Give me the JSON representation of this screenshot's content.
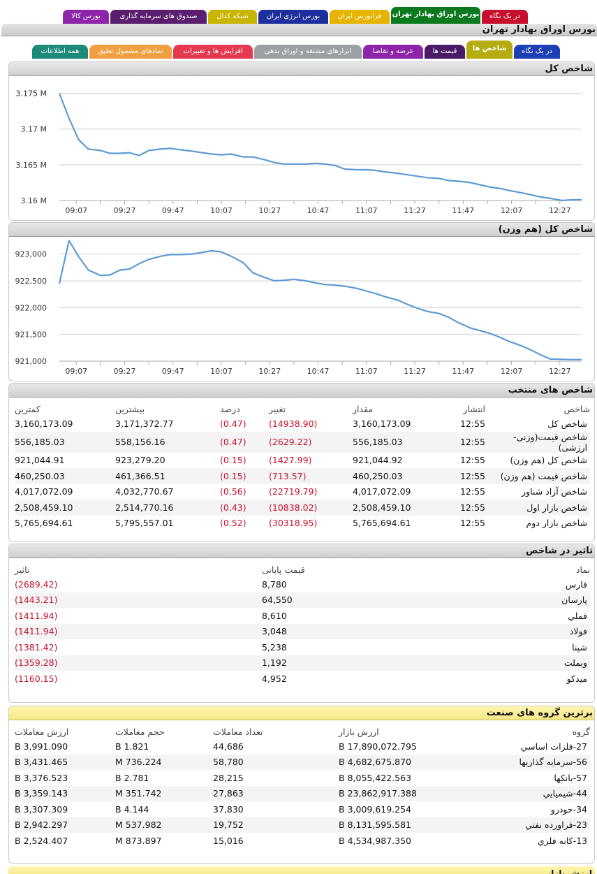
{
  "top_tabs": [
    {
      "label": "در یک نگاه",
      "color": "#c8102e"
    },
    {
      "label": "بورس اوراق بهادار تهران",
      "color": "#0b7a1f",
      "active": true
    },
    {
      "label": "فرابورس ایران",
      "color": "#e6b300"
    },
    {
      "label": "بورس انرژی ایران",
      "color": "#1c2f9c"
    },
    {
      "label": "شبکه کدال",
      "color": "#c9b400"
    },
    {
      "label": "صندوق های سرمایه گذاری",
      "color": "#5a1e6e"
    },
    {
      "label": "بورس کالا",
      "color": "#8e24aa"
    }
  ],
  "main_header": "بورس اوراق بهادار تهران",
  "sub_tabs": [
    {
      "label": "در یک نگاه",
      "color": "#1c3fb3"
    },
    {
      "label": "شاخص ها",
      "color": "#b5ad10",
      "active": true
    },
    {
      "label": "قیمت ها",
      "color": "#4b1a66"
    },
    {
      "label": "عرضه و تقاضا",
      "color": "#8e24aa"
    },
    {
      "label": "ابزارهای مشتقه و اوراق بدهی",
      "color": "#9aa0a6"
    },
    {
      "label": "افزایش ها و تغییرات",
      "color": "#e53950"
    },
    {
      "label": "نمادهای مشمول تعلیق",
      "color": "#f0a040"
    },
    {
      "label": "همه اطلاعات",
      "color": "#1e8a7a"
    }
  ],
  "chart1": {
    "title": "شاخص کل",
    "chart_data": {
      "type": "line",
      "x": [
        "09:00",
        "09:04",
        "09:08",
        "09:12",
        "09:17",
        "09:21",
        "09:25",
        "09:29",
        "09:33",
        "09:37",
        "09:42",
        "09:46",
        "09:50",
        "09:55",
        "09:59",
        "10:03",
        "10:07",
        "10:11",
        "10:16",
        "10:20",
        "10:25",
        "10:29",
        "10:33",
        "10:37",
        "10:42",
        "10:46",
        "10:50",
        "10:54",
        "10:58",
        "11:03",
        "11:07",
        "11:11",
        "11:15",
        "11:20",
        "11:24",
        "11:28",
        "11:32",
        "11:37",
        "11:41",
        "11:45",
        "11:50",
        "11:54",
        "11:58",
        "12:02",
        "12:06",
        "12:11",
        "12:15",
        "12:19",
        "12:23",
        "12:28",
        "12:32",
        "12:36"
      ],
      "series": [
        {
          "values": [
            3.175,
            3.1715,
            3.1685,
            3.1672,
            3.167,
            3.1666,
            3.1666,
            3.1667,
            3.1663,
            3.167,
            3.1672,
            3.1673,
            3.1671,
            3.1669,
            3.1667,
            3.1665,
            3.1664,
            3.1665,
            3.1661,
            3.1661,
            3.1657,
            3.1653,
            3.1651,
            3.1651,
            3.1651,
            3.1652,
            3.1651,
            3.1649,
            3.1644,
            3.1643,
            3.1643,
            3.1642,
            3.164,
            3.1638,
            3.1636,
            3.1634,
            3.1632,
            3.1631,
            3.1628,
            3.1627,
            3.1625,
            3.1622,
            3.1619,
            3.1617,
            3.1614,
            3.1611,
            3.1608,
            3.1605,
            3.1603,
            3.16,
            3.1601,
            3.1601
          ]
        }
      ],
      "xticks": [
        "09:07",
        "09:27",
        "09:47",
        "10:07",
        "10:27",
        "10:47",
        "11:07",
        "11:27",
        "11:47",
        "12:07",
        "12:27"
      ],
      "yticks": [
        "3.16 M",
        "3.165 M",
        "3.17 M",
        "3.175 M"
      ],
      "ylim": [
        3.16,
        3.175
      ],
      "color": "#5b9bd5",
      "grid": true
    }
  },
  "chart2": {
    "title": "شاخص کل (هم وزن)",
    "chart_data": {
      "type": "line",
      "x": [
        "09:00",
        "09:04",
        "09:08",
        "09:12",
        "09:17",
        "09:21",
        "09:25",
        "09:29",
        "09:33",
        "09:37",
        "09:42",
        "09:46",
        "09:50",
        "09:55",
        "09:59",
        "10:03",
        "10:07",
        "10:11",
        "10:16",
        "10:20",
        "10:25",
        "10:29",
        "10:33",
        "10:37",
        "10:42",
        "10:46",
        "10:50",
        "10:54",
        "10:58",
        "11:03",
        "11:07",
        "11:11",
        "11:15",
        "11:20",
        "11:24",
        "11:28",
        "11:32",
        "11:37",
        "11:41",
        "11:45",
        "11:50",
        "11:54",
        "11:58",
        "12:02",
        "12:06",
        "12:11",
        "12:15",
        "12:19",
        "12:23",
        "12:28",
        "12:32",
        "12:36"
      ],
      "series": [
        {
          "values": [
            922450,
            923250,
            922950,
            922700,
            922600,
            922610,
            922700,
            922720,
            922820,
            922900,
            922960,
            922990,
            922990,
            923000,
            923030,
            923060,
            923040,
            922960,
            922840,
            922650,
            922560,
            922500,
            922510,
            922530,
            922500,
            922460,
            922430,
            922420,
            922400,
            922360,
            922310,
            922260,
            922200,
            922140,
            922060,
            921990,
            921930,
            921890,
            921820,
            921720,
            921620,
            921570,
            921520,
            921450,
            921370,
            921290,
            921210,
            921120,
            921040,
            921035,
            921030,
            921030
          ]
        }
      ],
      "xticks": [
        "09:07",
        "09:27",
        "09:47",
        "10:07",
        "10:27",
        "10:47",
        "11:07",
        "11:27",
        "11:47",
        "12:07",
        "12:27"
      ],
      "yticks": [
        "921,000",
        "921,500",
        "922,000",
        "922,500",
        "923,000"
      ],
      "ylim": [
        921000,
        923000
      ],
      "color": "#5b9bd5",
      "grid": true
    }
  },
  "selected_indices": {
    "title": "شاخص های منتخب",
    "headers": [
      "شاخص",
      "انتشار",
      "مقدار",
      "تغییر",
      "درصد",
      "بیشترین",
      "کمترین"
    ],
    "rows": [
      [
        "شاخص کل",
        "12:55",
        "3,160,173.09",
        "(14938.90)",
        "(0.47)",
        "3,171,372.77",
        "3,160,173.09"
      ],
      [
        "شاخص قیمت(وزنی-ارزشی)",
        "12:55",
        "556,185.03",
        "(2629.22)",
        "(0.47)",
        "558,156.16",
        "556,185.03"
      ],
      [
        "شاخص کل (هم وزن)",
        "12:55",
        "921,044.92",
        "(1427.99)",
        "(0.15)",
        "923,279.20",
        "921,044.91"
      ],
      [
        "شاخص قیمت (هم وزن)",
        "12:55",
        "460,250.03",
        "(713.57)",
        "(0.15)",
        "461,366.51",
        "460,250.03"
      ],
      [
        "شاخص آزاد شناور",
        "12:55",
        "4,017,072.09",
        "(22719.79)",
        "(0.56)",
        "4,032,770.67",
        "4,017,072.09"
      ],
      [
        "شاخص بازار اول",
        "12:55",
        "2,508,459.10",
        "(10838.02)",
        "(0.43)",
        "2,514,770.16",
        "2,508,459.10"
      ],
      [
        "شاخص بازار دوم",
        "12:55",
        "5,765,694.61",
        "(30318.95)",
        "(0.52)",
        "5,795,557.01",
        "5,765,694.61"
      ]
    ]
  },
  "impact": {
    "title": "تاثیر در شاخص",
    "headers": [
      "نماد",
      "قیمت پایانی",
      "تاثیر"
    ],
    "rows": [
      [
        "فارس",
        "8,780",
        "(2689.42)"
      ],
      [
        "پارسان",
        "64,550",
        "(1443.21)"
      ],
      [
        "فملي",
        "8,610",
        "(1411.94)"
      ],
      [
        "فولاد",
        "3,048",
        "(1411.94)"
      ],
      [
        "شپنا",
        "5,238",
        "(1381.42)"
      ],
      [
        "وبملت",
        "1,192",
        "(1359.28)"
      ],
      [
        "میدکو",
        "4,952",
        "(1160.15)"
      ]
    ]
  },
  "industry": {
    "title": "برترین گروه های صنعت",
    "headers": [
      "گروه",
      "ارزش بازار",
      "تعداد معاملات",
      "حجم معاملات",
      "ارزش معاملات"
    ],
    "rows": [
      [
        "27-فلزات اساسي",
        "17,890,072.795 B",
        "44,686",
        "1.821 B",
        "3,991.090 B"
      ],
      [
        "56-سرمايه گذاريها",
        "4,682,675.870 B",
        "58,780",
        "736.224 M",
        "3,431.465 B"
      ],
      [
        "57-بانكها",
        "8,055,422.563 B",
        "28,215",
        "2.781 B",
        "3,376.523 B"
      ],
      [
        "44-شيميايي",
        "23,862,917.388 B",
        "27,863",
        "351.742 M",
        "3,359.143 B"
      ],
      [
        "34-خودرو",
        "3,009,619.254 B",
        "37,830",
        "4.144 B",
        "3,307.309 B"
      ],
      [
        "23-فراورده نفتي",
        "8,131,595.581 B",
        "19,752",
        "537.982 M",
        "2,942.297 B"
      ],
      [
        "13-كانه فلزي",
        "4,534,987.350 B",
        "15,016",
        "873.897 M",
        "2,524.407 B"
      ]
    ]
  },
  "bottom_panel_title": "ارزش بازار"
}
